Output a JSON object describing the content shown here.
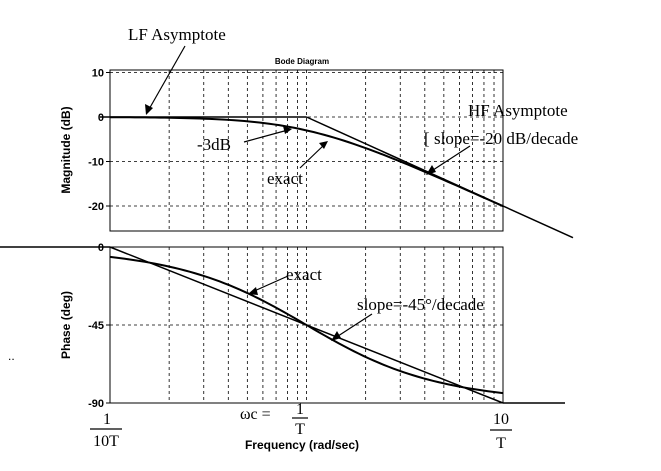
{
  "chart_data": [
    {
      "type": "line",
      "panel": "magnitude",
      "title": "Bode Diagram",
      "ylabel": "Magnitude (dB)",
      "xscale": "log",
      "xlim": [
        0.1,
        10
      ],
      "ylim": [
        -25,
        10
      ],
      "yticks": [
        10,
        0,
        -10,
        -20
      ],
      "grid": true,
      "series": [
        {
          "name": "exact",
          "x": [
            0.1,
            0.2,
            0.3,
            0.5,
            0.7,
            1,
            1.5,
            2,
            3,
            5,
            7,
            10
          ],
          "y": [
            0,
            -0.2,
            -0.4,
            -1.0,
            -1.7,
            -3.0,
            -5.1,
            -7.0,
            -10.0,
            -14.2,
            -17.0,
            -20.0
          ]
        },
        {
          "name": "LF Asymptote",
          "x": [
            0.1,
            1
          ],
          "y": [
            0,
            0
          ]
        },
        {
          "name": "HF Asymptote",
          "x": [
            1,
            20
          ],
          "y": [
            0,
            -26
          ]
        }
      ],
      "annotations": {
        "lf_asymptote": "LF Asymptote",
        "hf_asymptote": "HF Asymptote",
        "slope": "slope=-20 dB/decade",
        "minus3db": "-3dB",
        "exact": "exact"
      }
    },
    {
      "type": "line",
      "panel": "phase",
      "ylabel": "Phase (deg)",
      "xlabel": "Frequency (rad/sec)",
      "xscale": "log",
      "xlim": [
        0.1,
        10
      ],
      "ylim": [
        -90,
        0
      ],
      "yticks": [
        0,
        -45,
        -90
      ],
      "grid": true,
      "series": [
        {
          "name": "exact",
          "x": [
            0.1,
            0.2,
            0.3,
            0.5,
            0.7,
            1,
            1.5,
            2,
            3,
            5,
            7,
            10
          ],
          "y": [
            -5.7,
            -11.3,
            -16.7,
            -26.6,
            -35.0,
            -45.0,
            -56.3,
            -63.4,
            -71.6,
            -78.7,
            -81.9,
            -84.3
          ]
        },
        {
          "name": "slope=-45°/decade",
          "x": [
            0.1,
            10
          ],
          "y": [
            0,
            -90
          ]
        }
      ],
      "annotations": {
        "exact": "exact",
        "slope": "slope=-45°/decade"
      },
      "xtick_labels": {
        "left_num": "1",
        "left_den": "10T",
        "omega": "ωc =",
        "mid_num": "1",
        "mid_den": "T",
        "right_num": "10",
        "right_den": "T"
      }
    }
  ],
  "margin_mark": ".."
}
